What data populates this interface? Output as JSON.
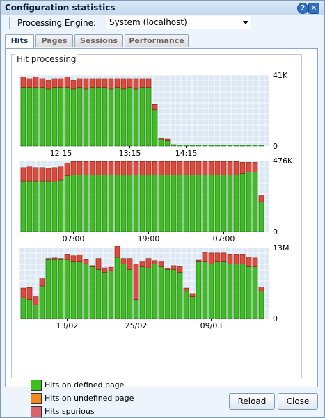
{
  "window": {
    "title": "Configuration statistics"
  },
  "engine": {
    "label": "Processing Engine:",
    "value": "System (localhost)"
  },
  "tabs": [
    {
      "label": "Hits"
    },
    {
      "label": "Pages"
    },
    {
      "label": "Sessions"
    },
    {
      "label": "Performance"
    }
  ],
  "group_title": "Hit processing",
  "legend": [
    {
      "label": "Hits on defined page",
      "color": "#3fbf1f"
    },
    {
      "label": "Hits on undefined page",
      "color": "#f28a1e"
    },
    {
      "label": "Hits spurious",
      "color": "#d9646a"
    }
  ],
  "buttons": {
    "reload": "Reload",
    "close": "Close"
  },
  "colors": {
    "defined": "#3fbf1f",
    "undefined": "#f28a1e",
    "spurious": "#e04a3a",
    "plot_bg": "#dce8f4",
    "grid": "#ffffff"
  },
  "chart_data": [
    {
      "type": "bar",
      "stacked": true,
      "ylim": [
        0,
        41000
      ],
      "ytick_labels": [
        "41K",
        "0"
      ],
      "xtick_labels": [
        "12:15",
        "13:15",
        "14:15"
      ],
      "xtick_index": [
        6,
        17,
        26
      ],
      "grid": true,
      "series": [
        {
          "name": "Hits on defined page",
          "values": [
            34000,
            34000,
            34000,
            34000,
            33000,
            34000,
            34000,
            34000,
            33000,
            34000,
            33000,
            34000,
            34000,
            34000,
            33000,
            34000,
            33000,
            34000,
            33000,
            34000,
            34000,
            21000,
            4000,
            3000,
            600,
            500,
            500,
            500,
            500,
            500,
            500,
            500,
            500,
            500,
            500,
            500,
            500,
            500,
            500
          ]
        },
        {
          "name": "Hits spurious",
          "values": [
            6000,
            5000,
            6000,
            5000,
            5000,
            5000,
            5000,
            6000,
            5000,
            5000,
            6000,
            5000,
            5000,
            5000,
            6000,
            5000,
            6000,
            5000,
            6000,
            5000,
            5000,
            3000,
            500,
            1000,
            200,
            0,
            0,
            0,
            0,
            0,
            0,
            0,
            0,
            0,
            0,
            0,
            0,
            0,
            0
          ]
        }
      ]
    },
    {
      "type": "bar",
      "stacked": true,
      "ylim": [
        0,
        476000
      ],
      "ytick_labels": [
        "476K",
        "0"
      ],
      "xtick_labels": [
        "07:00",
        "19:00",
        "07:00"
      ],
      "xtick_index": [
        8,
        20,
        32
      ],
      "grid": true,
      "series": [
        {
          "name": "Hits on defined page",
          "values": [
            340000,
            340000,
            340000,
            340000,
            340000,
            335000,
            345000,
            375000,
            380000,
            380000,
            380000,
            380000,
            380000,
            380000,
            380000,
            380000,
            380000,
            380000,
            380000,
            380000,
            380000,
            380000,
            380000,
            380000,
            380000,
            380000,
            380000,
            380000,
            380000,
            380000,
            380000,
            380000,
            380000,
            380000,
            380000,
            390000,
            400000,
            400000,
            200000
          ]
        },
        {
          "name": "Hits spurious",
          "values": [
            90000,
            95000,
            90000,
            90000,
            85000,
            95000,
            90000,
            85000,
            90000,
            90000,
            90000,
            90000,
            90000,
            90000,
            90000,
            90000,
            90000,
            90000,
            90000,
            90000,
            90000,
            90000,
            90000,
            90000,
            90000,
            90000,
            90000,
            90000,
            90000,
            90000,
            90000,
            90000,
            90000,
            90000,
            90000,
            75000,
            65000,
            65000,
            40000
          ]
        }
      ]
    },
    {
      "type": "bar",
      "stacked": true,
      "ylim": [
        0,
        13000000
      ],
      "ytick_labels": [
        "13M",
        "0"
      ],
      "xtick_labels": [
        "13/02",
        "25/02",
        "09/03"
      ],
      "xtick_index": [
        7,
        18,
        30
      ],
      "grid": true,
      "series": [
        {
          "name": "Hits on defined page",
          "values": [
            3800000,
            3500000,
            2500000,
            6000000,
            10800000,
            10800000,
            10800000,
            10800000,
            10500000,
            10500000,
            10000000,
            9500000,
            9000000,
            8500000,
            8800000,
            11200000,
            10000000,
            9000000,
            3500000,
            9500000,
            9300000,
            10000000,
            9500000,
            9000000,
            9000000,
            8500000,
            5000000,
            4000000,
            10500000,
            10500000,
            10000000,
            10500000,
            10500000,
            10000000,
            10000000,
            10000000,
            9500000,
            9500000,
            5000000
          ]
        },
        {
          "name": "Hits spurious",
          "values": [
            1800000,
            2200000,
            1500000,
            1300000,
            200000,
            300000,
            200000,
            1000000,
            1000000,
            1200000,
            800000,
            200000,
            2000000,
            800000,
            600000,
            2000000,
            1000000,
            2000000,
            6500000,
            1000000,
            1700000,
            600000,
            1000000,
            200000,
            700000,
            1000000,
            600000,
            600000,
            200000,
            1600000,
            2000000,
            1500000,
            1500000,
            1800000,
            1800000,
            1800000,
            1800000,
            1600000,
            800000
          ]
        }
      ]
    }
  ]
}
